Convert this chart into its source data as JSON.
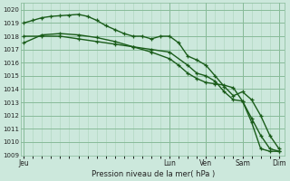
{
  "title": "",
  "xlabel": "Pression niveau de la mer( hPa )",
  "bg_color": "#cce8dc",
  "grid_major_color": "#88bb99",
  "grid_minor_color": "#aad4bb",
  "line_color": "#1a5c1a",
  "ylim": [
    1009,
    1020.5
  ],
  "yticks": [
    1009,
    1010,
    1011,
    1012,
    1013,
    1014,
    1015,
    1016,
    1017,
    1018,
    1019,
    1020
  ],
  "x_day_labels": [
    {
      "label": "Jeu",
      "x": 0.0
    },
    {
      "label": "Lun",
      "x": 96.0
    },
    {
      "label": "Ven",
      "x": 120.0
    },
    {
      "label": "Sam",
      "x": 144.0
    },
    {
      "label": "Dim",
      "x": 168.0
    }
  ],
  "xlim": [
    -2,
    172
  ],
  "line1": {
    "x": [
      0,
      6,
      12,
      18,
      24,
      30,
      36,
      42,
      48,
      54,
      60,
      66,
      72,
      78,
      84,
      90,
      96,
      102,
      108,
      114,
      120,
      126,
      132,
      138,
      144,
      150,
      156,
      162,
      168
    ],
    "y": [
      1019.0,
      1019.2,
      1019.4,
      1019.5,
      1019.55,
      1019.6,
      1019.65,
      1019.5,
      1019.2,
      1018.8,
      1018.5,
      1018.2,
      1018.0,
      1018.0,
      1017.8,
      1018.0,
      1018.0,
      1017.5,
      1016.5,
      1016.2,
      1015.8,
      1015.0,
      1014.2,
      1013.5,
      1013.8,
      1013.2,
      1012.0,
      1010.5,
      1009.5
    ]
  },
  "line2": {
    "x": [
      0,
      12,
      24,
      36,
      48,
      60,
      72,
      84,
      96,
      108,
      114,
      120,
      126,
      132,
      138,
      144,
      150,
      156,
      162,
      168
    ],
    "y": [
      1018.0,
      1018.0,
      1018.0,
      1017.8,
      1017.6,
      1017.4,
      1017.2,
      1017.0,
      1016.8,
      1015.8,
      1015.2,
      1015.0,
      1014.6,
      1013.8,
      1013.2,
      1013.1,
      1011.8,
      1010.5,
      1009.5,
      1009.3
    ]
  },
  "line3": {
    "x": [
      0,
      12,
      24,
      36,
      48,
      60,
      72,
      84,
      96,
      102,
      108,
      114,
      120,
      126,
      132,
      138,
      144,
      150,
      156,
      162,
      168
    ],
    "y": [
      1017.5,
      1018.1,
      1018.2,
      1018.1,
      1017.9,
      1017.6,
      1017.2,
      1016.8,
      1016.3,
      1015.8,
      1015.2,
      1014.8,
      1014.5,
      1014.4,
      1014.3,
      1014.1,
      1013.1,
      1011.5,
      1009.5,
      1009.3,
      1009.3
    ]
  }
}
